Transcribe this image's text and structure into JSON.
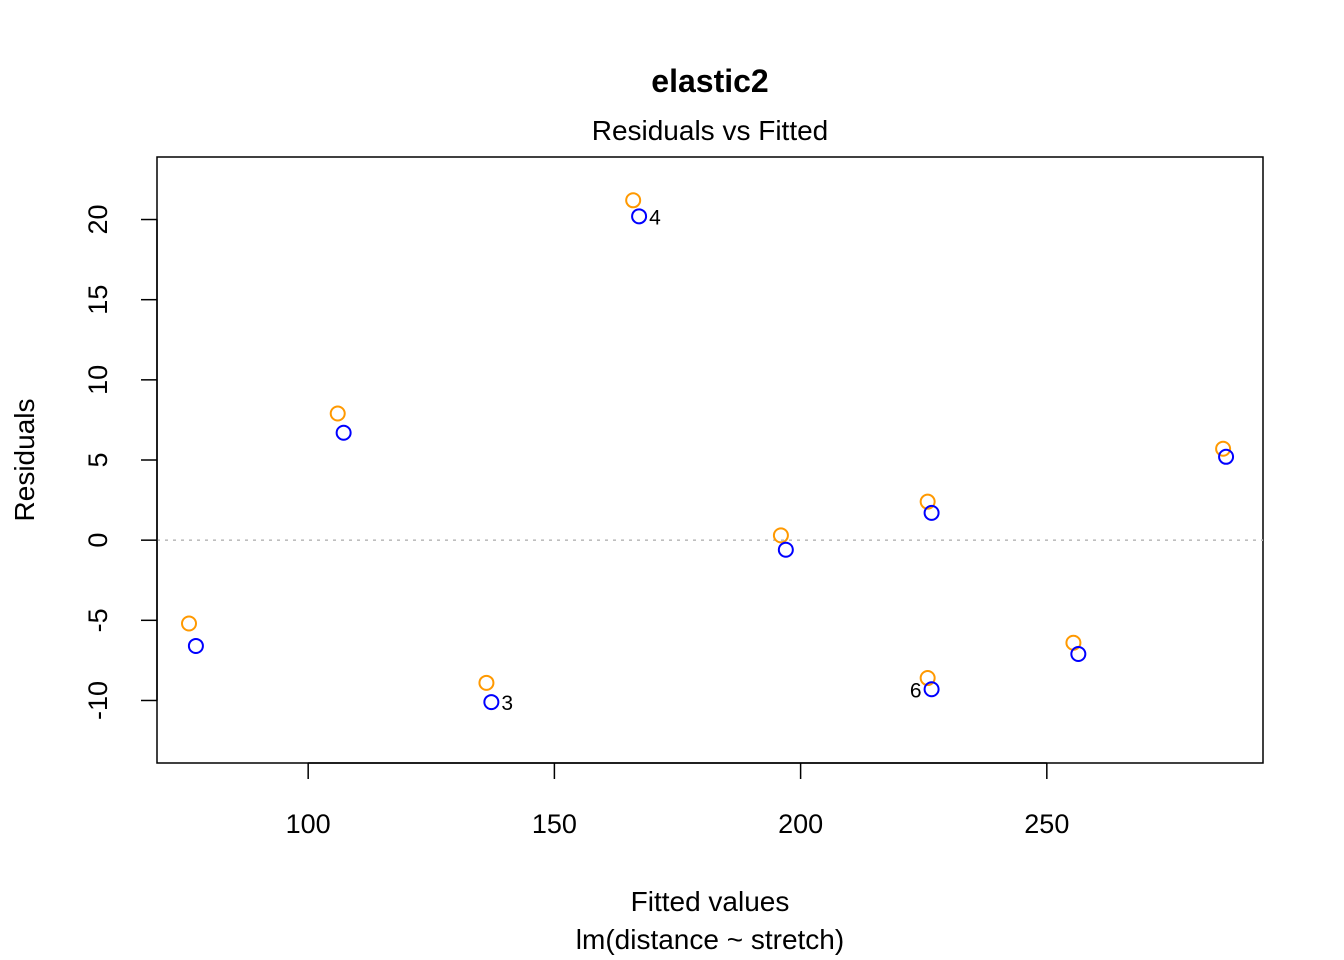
{
  "chart_data": {
    "type": "scatter",
    "title": "elastic2",
    "subtitle": "Residuals vs Fitted",
    "xlabel": "Fitted values",
    "xlabel2": "lm(distance ~ stretch)",
    "ylabel": "Residuals",
    "xlim": [
      69.3,
      293.9
    ],
    "ylim": [
      -13.9,
      23.9
    ],
    "x_ticks": [
      100,
      150,
      200,
      250
    ],
    "y_ticks": [
      -10,
      -5,
      0,
      5,
      10,
      15,
      20
    ],
    "x_tick_labels": [
      "100",
      "150",
      "200",
      "250"
    ],
    "y_tick_labels": [
      "-10",
      "-5",
      "0",
      "5",
      "10",
      "15",
      "20"
    ],
    "reference_line": {
      "y": 0,
      "style": "dotted",
      "color": "#bebebe"
    },
    "grid": false,
    "colors": {
      "series1": "#ff9900",
      "series2": "#0000ff"
    },
    "series": [
      {
        "color": "#ff9900",
        "points": [
          {
            "x": 75.8,
            "y": -5.2
          },
          {
            "x": 106.0,
            "y": 7.9
          },
          {
            "x": 136.2,
            "y": -8.9
          },
          {
            "x": 166.0,
            "y": 21.2
          },
          {
            "x": 196.0,
            "y": 0.3
          },
          {
            "x": 225.8,
            "y": 2.4
          },
          {
            "x": 225.8,
            "y": -8.6
          },
          {
            "x": 255.4,
            "y": -6.4
          },
          {
            "x": 285.8,
            "y": 5.7
          }
        ]
      },
      {
        "color": "#0000ff",
        "points": [
          {
            "x": 77.2,
            "y": -6.6
          },
          {
            "x": 107.2,
            "y": 6.7
          },
          {
            "x": 137.2,
            "y": -10.1
          },
          {
            "x": 167.2,
            "y": 20.2
          },
          {
            "x": 197.0,
            "y": -0.6
          },
          {
            "x": 226.6,
            "y": 1.7
          },
          {
            "x": 226.6,
            "y": -9.3
          },
          {
            "x": 256.4,
            "y": -7.1
          },
          {
            "x": 286.4,
            "y": 5.2
          }
        ]
      }
    ],
    "annotations": [
      {
        "text": "4",
        "x": 167.2,
        "y": 20.2,
        "side": "right"
      },
      {
        "text": "3",
        "x": 137.2,
        "y": -10.1,
        "side": "right"
      },
      {
        "text": "6",
        "x": 226.6,
        "y": -9.3,
        "side": "left"
      }
    ]
  }
}
